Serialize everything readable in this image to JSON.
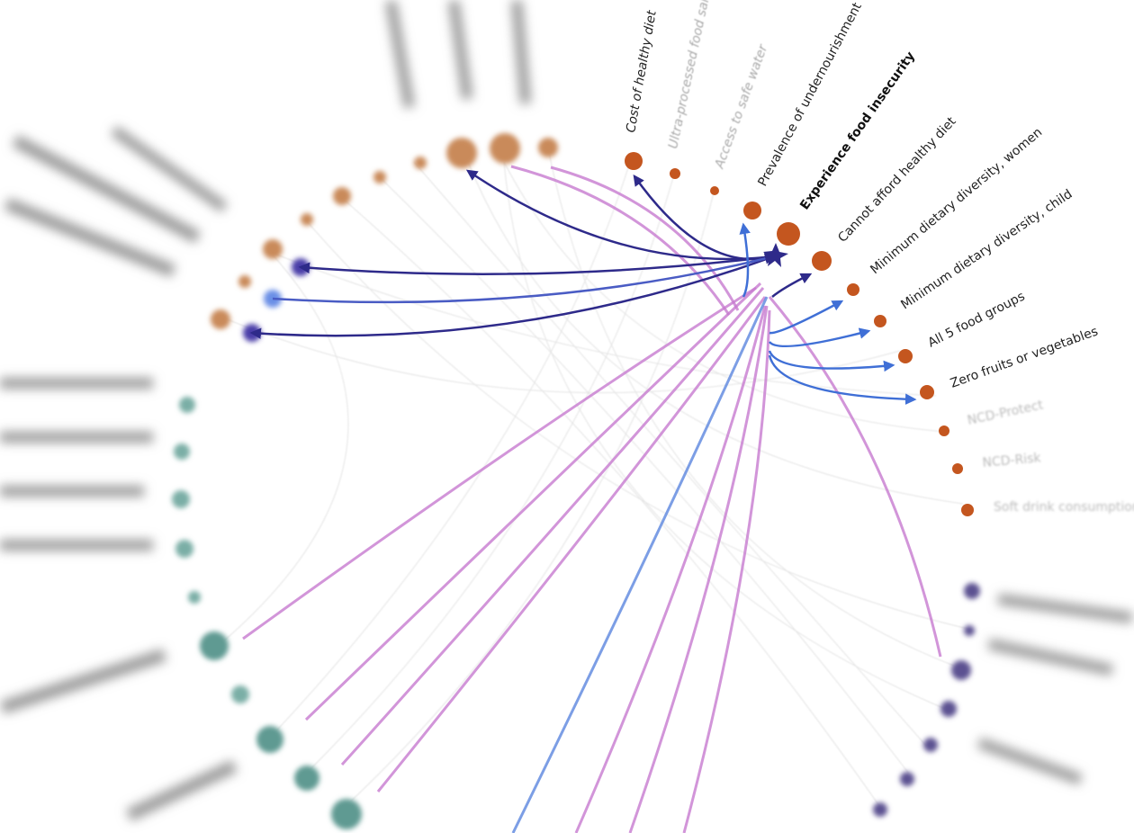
{
  "nodes": [
    {
      "label": "Cost of healthy diet"
    },
    {
      "label": "Ultra-processed food sales"
    },
    {
      "label": "Access to safe water"
    },
    {
      "label": "Prevalence of undernourishment"
    },
    {
      "label": "Experience food insecurity"
    },
    {
      "label": "Cannot afford healthy diet"
    },
    {
      "label": "Minimum dietary diversity, women"
    },
    {
      "label": "Minimum dietary diversity, child"
    },
    {
      "label": "All 5 food groups"
    },
    {
      "label": "Zero fruits or vegetables"
    },
    {
      "label": "NCD-Protect"
    },
    {
      "label": "NCD-Risk"
    },
    {
      "label": "Soft drink consumption"
    }
  ]
}
